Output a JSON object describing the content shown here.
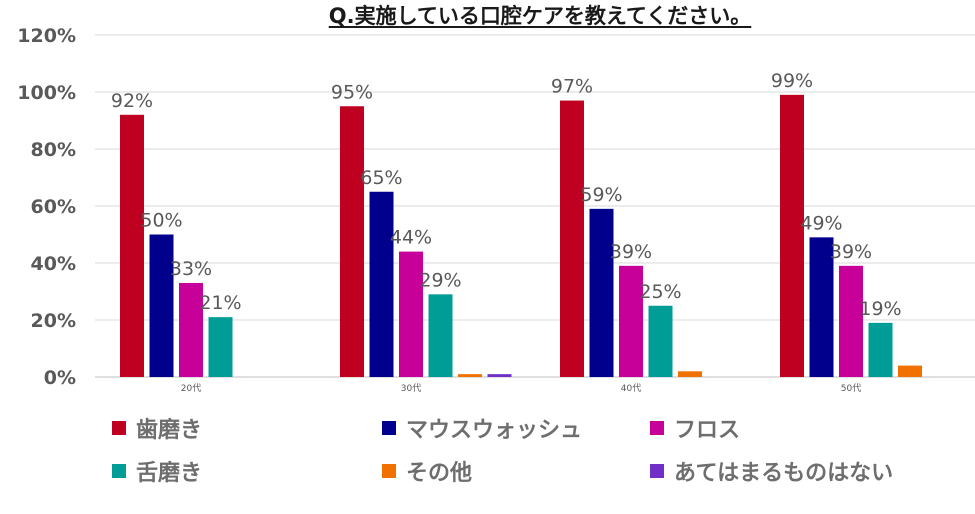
{
  "chart_data": {
    "type": "bar",
    "title": "Q.実施している口腔ケアを教えてください。",
    "categories": [
      "20代",
      "30代",
      "40代",
      "50代"
    ],
    "series": [
      {
        "name": "歯磨き",
        "color": "#C00020",
        "values": [
          92,
          95,
          97,
          99
        ]
      },
      {
        "name": "マウスウォッシュ",
        "color": "#00008C",
        "values": [
          50,
          65,
          59,
          49
        ]
      },
      {
        "name": "フロス",
        "color": "#C8009A",
        "values": [
          33,
          44,
          39,
          39
        ]
      },
      {
        "name": "舌磨き",
        "color": "#009C96",
        "values": [
          21,
          29,
          25,
          19
        ]
      },
      {
        "name": "その他",
        "color": "#F07000",
        "values": [
          0,
          1,
          2,
          4
        ]
      },
      {
        "name": "あてはまるものはない",
        "color": "#7030C8",
        "values": [
          0,
          1,
          0,
          0
        ]
      }
    ],
    "data_labels": [
      [
        "92%",
        "95%",
        "97%",
        "99%"
      ],
      [
        "50%",
        "65%",
        "59%",
        "49%"
      ],
      [
        "33%",
        "44%",
        "39%",
        "39%"
      ],
      [
        "21%",
        "29%",
        "25%",
        "19%"
      ]
    ],
    "y_ticks": [
      "0%",
      "20%",
      "40%",
      "60%",
      "80%",
      "100%",
      "120%"
    ],
    "ylim": [
      0,
      120
    ],
    "grid": true,
    "legend_position": "bottom"
  }
}
